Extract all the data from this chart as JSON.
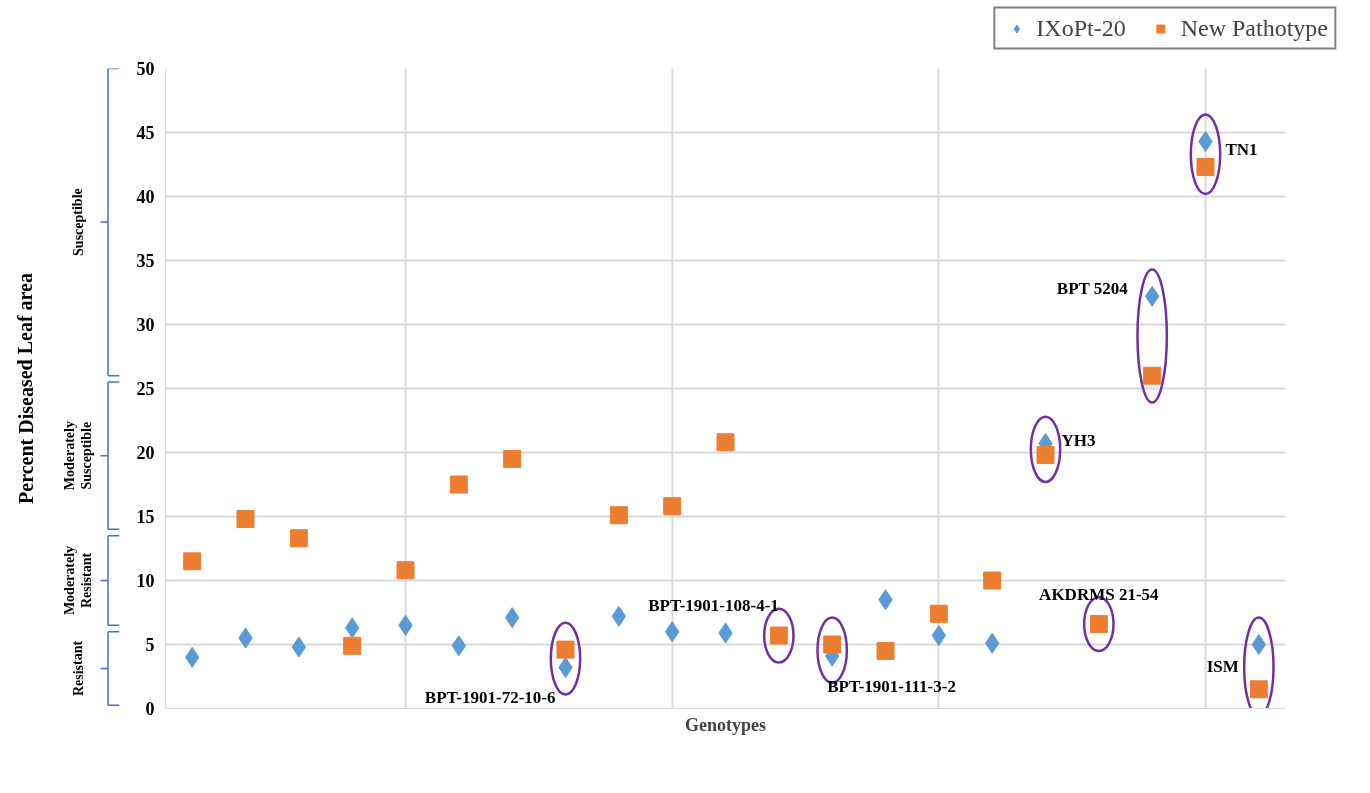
{
  "chart_data": {
    "type": "scatter",
    "xlabel": "Genotypes",
    "ylabel": "Percent Diseased Leaf area",
    "categories": [
      null,
      null,
      null,
      null,
      null,
      null,
      null,
      null,
      null,
      null,
      null,
      null,
      null,
      null,
      null,
      null,
      null,
      null,
      null,
      null,
      null
    ],
    "ylim": [
      0,
      50
    ],
    "yticks": [
      0,
      5,
      10,
      15,
      20,
      25,
      30,
      35,
      40,
      45,
      50
    ],
    "tick_labels": "y",
    "grid": true,
    "legend": "top right",
    "series": [
      {
        "name": "IXoPt-20",
        "color": "#5b9bd5",
        "marker": "diamond",
        "values": [
          4.0,
          5.5,
          4.8,
          6.3,
          6.5,
          4.9,
          7.1,
          3.2,
          7.2,
          6.0,
          5.9,
          null,
          4.1,
          8.5,
          5.7,
          5.1,
          20.7,
          null,
          32.2,
          44.3,
          5.0
        ]
      },
      {
        "name": "New Pathotype",
        "color": "#ed7d31",
        "marker": "square",
        "values": [
          11.5,
          14.8,
          13.3,
          4.9,
          10.8,
          17.5,
          19.5,
          4.6,
          15.1,
          15.8,
          20.8,
          5.7,
          5.0,
          4.5,
          7.4,
          10.0,
          19.8,
          6.6,
          26.0,
          42.3,
          1.5
        ]
      }
    ],
    "annotations": [
      "Resistant",
      "Moderately\nResistant",
      "Moderately\nSusceptible",
      "Susceptible",
      "BPT-1901-72-10-6",
      "BPT-1901-108-4-1",
      "BPT-1901-111-3-2",
      "AKDRMS 21-54",
      "YH3",
      "BPT 5204",
      "TN1",
      "ISM"
    ]
  }
}
